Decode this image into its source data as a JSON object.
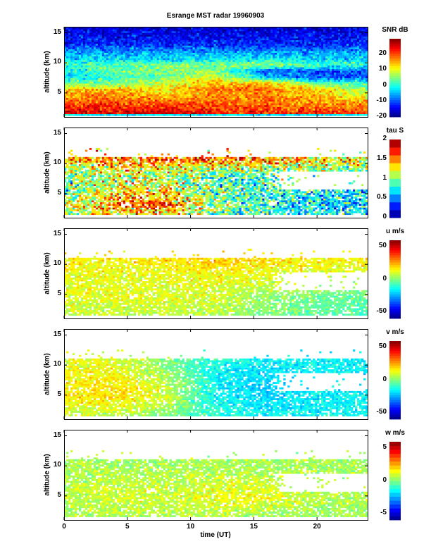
{
  "chart_data": {
    "type": "heatmap",
    "title": "Esrange MST radar 19960903",
    "xlabel": "time (UT)",
    "ylabel": "altitude (km)",
    "xlim": [
      0,
      24
    ],
    "ylim": [
      1,
      16
    ],
    "xticks": [
      0,
      5,
      10,
      15,
      20
    ],
    "yticks": [
      5,
      10,
      15
    ],
    "time_knots_h": [
      0,
      4,
      8,
      12,
      16,
      20,
      24
    ],
    "panels": [
      {
        "name": "snr",
        "colorbar_label": "SNR dB",
        "clim": [
          -20,
          30
        ],
        "cticks": [
          -20,
          -10,
          0,
          10,
          20
        ],
        "levels": 32,
        "noise": 4,
        "alt_knots_km": [
          1.5,
          2.5,
          3.5,
          4.5,
          5.5,
          6.5,
          7.5,
          8.5,
          9.5,
          10.5,
          11.5,
          13,
          15
        ],
        "values": [
          [
            25,
            22,
            18,
            15,
            14,
            3,
            -2,
            -2,
            2,
            -3,
            -5,
            -12,
            -15
          ],
          [
            25,
            22,
            20,
            17,
            14,
            4,
            2,
            4,
            3,
            -2,
            -5,
            -12,
            -15
          ],
          [
            27,
            22,
            18,
            14,
            12,
            8,
            4,
            6,
            4,
            -3,
            -5,
            -12,
            -15
          ],
          [
            22,
            20,
            18,
            16,
            18,
            15,
            10,
            5,
            6,
            -2,
            -5,
            -12,
            -15
          ],
          [
            22,
            20,
            18,
            17,
            18,
            14,
            -5,
            -8,
            6,
            -2,
            -5,
            -12,
            -15
          ],
          [
            22,
            18,
            16,
            14,
            13,
            3,
            -10,
            -10,
            2,
            -3,
            -5,
            -12,
            -15
          ],
          [
            22,
            18,
            14,
            10,
            5,
            2,
            -10,
            -10,
            2,
            -3,
            -5,
            -12,
            -15
          ]
        ],
        "coverage": {
          "bottom_km": 1.2,
          "top_km": 16.2,
          "fill": 1.0
        }
      },
      {
        "name": "tau",
        "colorbar_label": "tau S",
        "clim": [
          0,
          2
        ],
        "cticks": [
          0,
          0.5,
          1,
          1.5,
          2
        ],
        "levels": 10,
        "noise": 0.35,
        "alt_knots_km": [
          1.5,
          3,
          4.5,
          6,
          7.5,
          9,
          10.5
        ],
        "values": [
          [
            1.0,
            1.1,
            0.9,
            0.9,
            1.0,
            1.1,
            1.4
          ],
          [
            1.3,
            1.5,
            1.4,
            1.2,
            1.2,
            1.3,
            1.5
          ],
          [
            1.4,
            1.6,
            1.5,
            1.2,
            1.1,
            1.2,
            1.6
          ],
          [
            0.9,
            1.0,
            0.9,
            0.9,
            0.9,
            1.1,
            1.6
          ],
          [
            0.8,
            0.8,
            0.8,
            0.9,
            0.9,
            1.1,
            1.5
          ],
          [
            0.7,
            0.7,
            0.7,
            0.8,
            0.9,
            1.1,
            1.3
          ],
          [
            0.7,
            0.7,
            0.7,
            0.8,
            0.9,
            1.0,
            1.2
          ]
        ],
        "coverage": {
          "bottom_km": 1.5,
          "top_km": 11.0,
          "fill": 0.82,
          "gap_after_h": 16,
          "gap_km": [
            5.6,
            8.6
          ]
        }
      },
      {
        "name": "u",
        "colorbar_label": "u m/s",
        "clim": [
          -60,
          60
        ],
        "cticks": [
          -50,
          0,
          50
        ],
        "levels": 32,
        "noise": 6,
        "alt_knots_km": [
          1.5,
          3,
          4.5,
          6,
          7.5,
          9,
          10.5
        ],
        "values": [
          [
            8,
            10,
            12,
            12,
            12,
            14,
            16
          ],
          [
            8,
            10,
            12,
            12,
            12,
            14,
            16
          ],
          [
            8,
            10,
            12,
            12,
            12,
            14,
            18
          ],
          [
            6,
            8,
            10,
            12,
            14,
            16,
            20
          ],
          [
            0,
            2,
            4,
            8,
            12,
            14,
            18
          ],
          [
            -4,
            -3,
            -2,
            6,
            10,
            12,
            16
          ],
          [
            -5,
            -4,
            -3,
            6,
            10,
            12,
            16
          ]
        ],
        "coverage": {
          "bottom_km": 1.5,
          "top_km": 11.0,
          "fill": 0.82,
          "gap_after_h": 16,
          "gap_km": [
            5.6,
            8.6
          ]
        }
      },
      {
        "name": "v",
        "colorbar_label": "v m/s",
        "clim": [
          -60,
          60
        ],
        "cticks": [
          -50,
          0,
          50
        ],
        "levels": 32,
        "noise": 6,
        "alt_knots_km": [
          1.5,
          3,
          4.5,
          6,
          7.5,
          9,
          10.5
        ],
        "values": [
          [
            8,
            12,
            16,
            16,
            14,
            14,
            12
          ],
          [
            8,
            14,
            18,
            18,
            16,
            14,
            12
          ],
          [
            0,
            6,
            10,
            10,
            6,
            2,
            0
          ],
          [
            -10,
            -12,
            -15,
            -15,
            -15,
            -15,
            -12
          ],
          [
            -15,
            -18,
            -20,
            -20,
            -18,
            -18,
            -15
          ],
          [
            -15,
            -15,
            -15,
            -15,
            -15,
            -15,
            -15
          ],
          [
            -15,
            -15,
            -15,
            -15,
            -15,
            -15,
            -15
          ]
        ],
        "coverage": {
          "bottom_km": 1.5,
          "top_km": 11.0,
          "fill": 0.82,
          "gap_after_h": 16,
          "gap_km": [
            5.6,
            8.6
          ]
        }
      },
      {
        "name": "w",
        "colorbar_label": "w m/s",
        "clim": [
          -6,
          6
        ],
        "cticks": [
          -5,
          0,
          5
        ],
        "levels": 20,
        "noise": 0.6,
        "alt_knots_km": [
          1.5,
          3,
          4.5,
          6,
          7.5,
          9,
          10.5
        ],
        "values": [
          [
            0.5,
            0.6,
            0.7,
            0.7,
            0.6,
            0.5,
            0.5
          ],
          [
            0.6,
            0.8,
            1.0,
            0.9,
            0.7,
            0.6,
            0.5
          ],
          [
            0.6,
            0.8,
            0.9,
            0.8,
            0.7,
            0.6,
            0.5
          ],
          [
            0.7,
            1.0,
            1.3,
            1.2,
            0.9,
            0.6,
            0.5
          ],
          [
            0.5,
            0.8,
            1.4,
            1.0,
            0.8,
            0.6,
            0.5
          ],
          [
            0.4,
            0.5,
            0.6,
            0.6,
            0.6,
            0.5,
            0.5
          ],
          [
            0.4,
            0.5,
            0.6,
            0.6,
            0.6,
            0.5,
            0.5
          ]
        ],
        "coverage": {
          "bottom_km": 1.5,
          "top_km": 11.0,
          "fill": 0.82,
          "gap_after_h": 16,
          "gap_km": [
            5.6,
            8.6
          ]
        }
      }
    ]
  }
}
